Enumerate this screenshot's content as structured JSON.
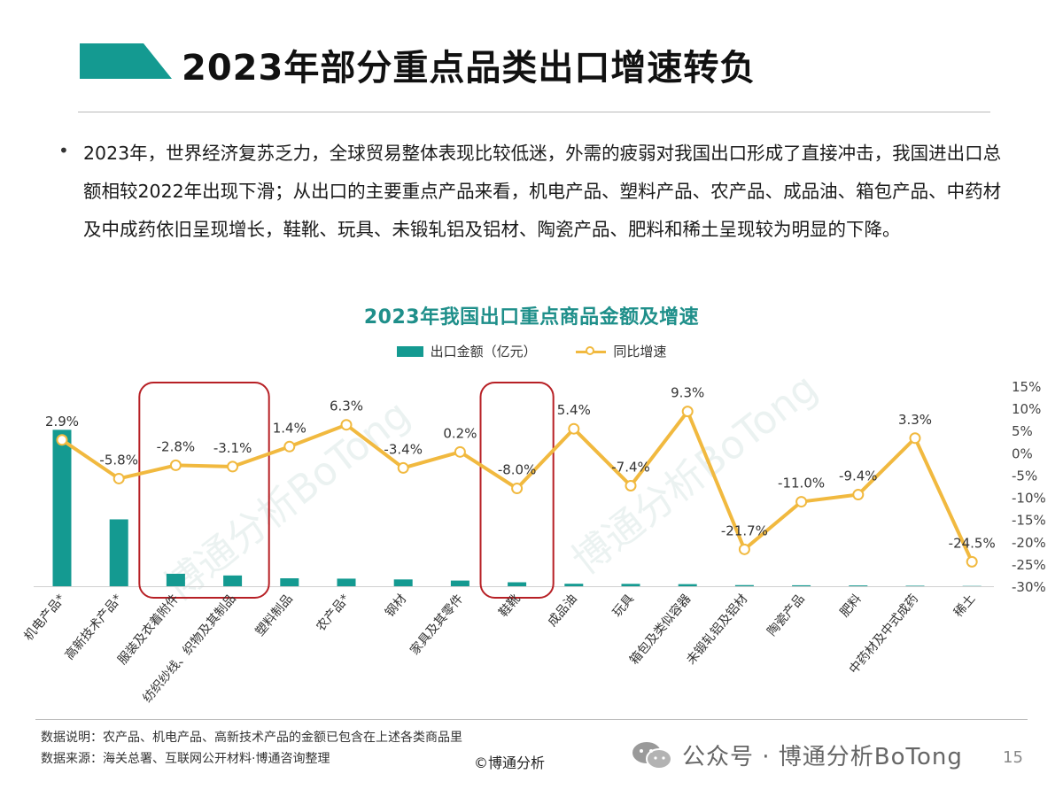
{
  "header": {
    "title": "2023年部分重点品类出口增速转负",
    "accent_color": "#149a91"
  },
  "intro": {
    "bullet": "•",
    "text": "2023年，世界经济复苏乏力，全球贸易整体表现比较低迷，外需的疲弱对我国出口形成了直接冲击，我国进出口总额相较2022年出现下滑；从出口的主要重点产品来看，机电产品、塑料产品、农产品、成品油、箱包产品、中药材及中成药依旧呈现增长，鞋靴、玩具、未锻轧铝及铝材、陶瓷产品、肥料和稀土呈现较为明显的下降。"
  },
  "chart_data": {
    "type": "bar",
    "title": "2023年我国出口重点商品金额及增速",
    "categories": [
      "机电产品*",
      "高新技术产品*",
      "服装及衣着附件",
      "纺织纱线、织物及其制品",
      "塑料制品",
      "农产品*",
      "钢材",
      "家具及其零件",
      "鞋靴",
      "成品油",
      "玩具",
      "箱包及类似容器",
      "未锻轧铝及铝材",
      "陶瓷产品",
      "肥料",
      "中药材及中式成药",
      "稀土"
    ],
    "series": [
      {
        "name": "出口金额（亿元）",
        "type": "bar",
        "color": "#149a91",
        "values": [
          138000,
          59000,
          11000,
          9500,
          7000,
          6700,
          6000,
          5000,
          3500,
          2200,
          2100,
          1850,
          1000,
          850,
          700,
          450,
          250
        ]
      },
      {
        "name": "同比增速",
        "type": "line",
        "color": "#f1b93f",
        "axis": "right",
        "values": [
          2.9,
          -5.8,
          -2.8,
          -3.1,
          1.4,
          6.3,
          -3.4,
          0.2,
          -8.0,
          5.4,
          -7.4,
          9.3,
          -21.7,
          -11.0,
          -9.4,
          3.3,
          -24.5
        ],
        "labels": [
          "2.9%",
          "-5.8%",
          "-2.8%",
          "-3.1%",
          "1.4%",
          "6.3%",
          "-3.4%",
          "0.2%",
          "-8.0%",
          "5.4%",
          "-7.4%",
          "9.3%",
          "-21.7%",
          "-11.0%",
          "-9.4%",
          "3.3%",
          "-24.5%"
        ]
      }
    ],
    "y_right": {
      "ylim": [
        -30,
        15
      ],
      "ticks": [
        15,
        10,
        5,
        0,
        -5,
        -10,
        -15,
        -20,
        -25,
        -30
      ],
      "tick_labels": [
        "15%",
        "10%",
        "5%",
        "0%",
        "-5%",
        "-10%",
        "-15%",
        "-20%",
        "-25%",
        "-30%"
      ]
    },
    "y_left": {
      "ylim": [
        0,
        150000
      ]
    },
    "legend_position": "top-center",
    "grid": false,
    "highlight_boxes": [
      {
        "categories": [
          "服装及衣着附件",
          "纺织纱线、织物及其制品"
        ],
        "color": "#b72025"
      },
      {
        "categories": [
          "鞋靴"
        ],
        "color": "#b72025"
      }
    ]
  },
  "footer": {
    "note_1": "数据说明：农产品、机电产品、高新技术产品的金额已包含在上述各类商品里",
    "note_2": "数据来源：海关总署、互联网公开材料·博通咨询整理",
    "copyright": "©博通分析",
    "wechat": "公众号 · 博通分析BoTong",
    "page_number": "15"
  },
  "watermark": "博通分析BoTong"
}
